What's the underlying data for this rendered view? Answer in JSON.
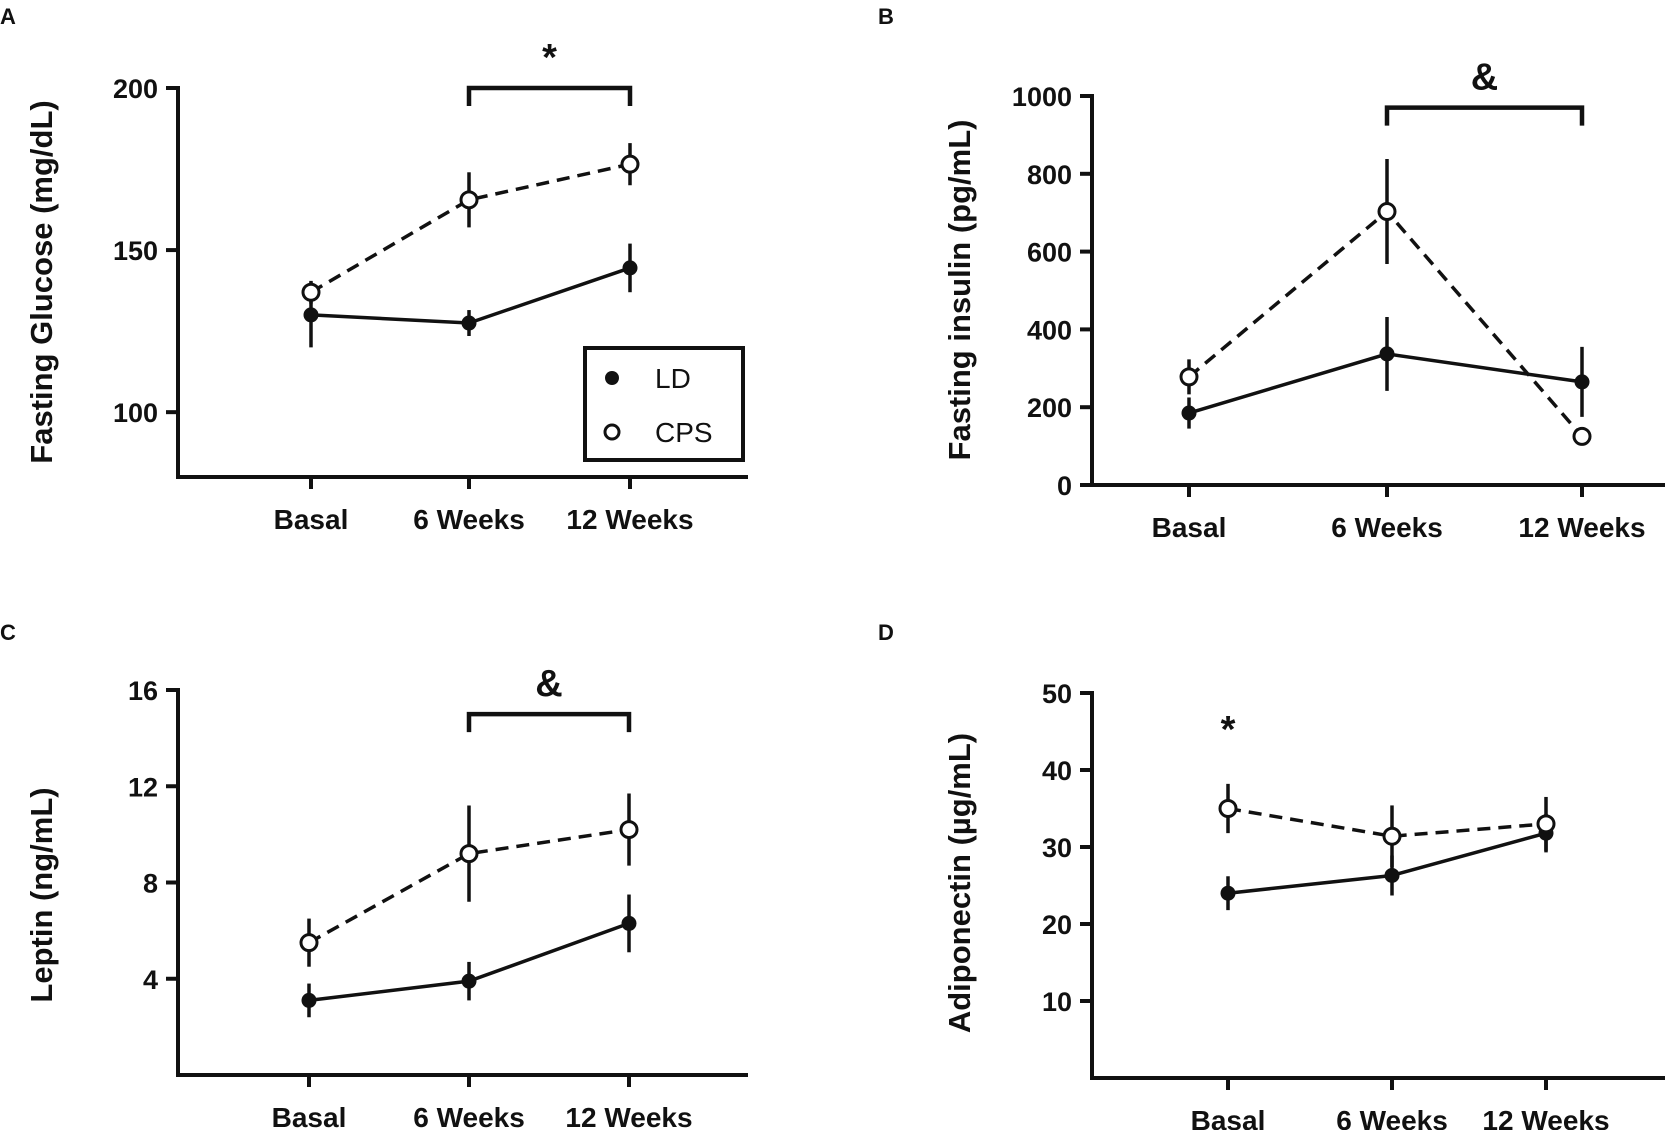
{
  "figure": {
    "panels": [
      "A",
      "B",
      "C",
      "D"
    ]
  },
  "colors": {
    "ink": "#111111",
    "open_fill": "#ffffff"
  },
  "chart_data": [
    {
      "panel": "A",
      "type": "line",
      "categories": [
        "Basal",
        "6 Weeks",
        "12 Weeks"
      ],
      "ylabel": "Fasting Glucose (mg/dL)",
      "xlabel": "",
      "ylim": [
        80,
        200
      ],
      "yticks": [
        100,
        150,
        200
      ],
      "series": [
        {
          "name": "LD",
          "marker": "filled",
          "dash": "solid",
          "values": [
            130,
            127.5,
            144.5
          ],
          "errors": [
            10,
            4,
            7.5
          ]
        },
        {
          "name": "CPS",
          "marker": "open",
          "dash": "dashed",
          "values": [
            137,
            165.5,
            176.5
          ],
          "errors": [
            3.5,
            8.5,
            6.5
          ]
        }
      ],
      "significance": [
        {
          "symbol": "*",
          "from": 1,
          "to": 2,
          "bracket": true,
          "level": 200
        }
      ],
      "legend": {
        "position": "bottom-right",
        "entries": [
          "LD",
          "CPS"
        ]
      }
    },
    {
      "panel": "B",
      "type": "line",
      "categories": [
        "Basal",
        "6 Weeks",
        "12 Weeks"
      ],
      "ylabel": "Fasting insulin (pg/mL)",
      "xlabel": "",
      "ylim": [
        0,
        1000
      ],
      "yticks": [
        0,
        200,
        400,
        600,
        800,
        1000
      ],
      "series": [
        {
          "name": "LD",
          "marker": "filled",
          "dash": "solid",
          "values": [
            185,
            337,
            265
          ],
          "errors": [
            40,
            95,
            90
          ]
        },
        {
          "name": "CPS",
          "marker": "open",
          "dash": "dashed",
          "values": [
            278,
            703,
            125
          ],
          "errors": [
            45,
            135,
            15
          ]
        }
      ],
      "significance": [
        {
          "symbol": "&",
          "from": 1,
          "to": 2,
          "bracket": true,
          "level": 970
        }
      ]
    },
    {
      "panel": "C",
      "type": "line",
      "categories": [
        "Basal",
        "6 Weeks",
        "12 Weeks"
      ],
      "ylabel": "Leptin (ng/mL)",
      "xlabel": "",
      "ylim": [
        0,
        16
      ],
      "yticks": [
        4,
        8,
        12,
        16
      ],
      "series": [
        {
          "name": "LD",
          "marker": "filled",
          "dash": "solid",
          "values": [
            3.1,
            3.9,
            6.3
          ],
          "errors": [
            0.7,
            0.8,
            1.2
          ]
        },
        {
          "name": "CPS",
          "marker": "open",
          "dash": "dashed",
          "values": [
            5.5,
            9.2,
            10.2
          ],
          "errors": [
            1.0,
            2.0,
            1.5
          ]
        }
      ],
      "significance": [
        {
          "symbol": "&",
          "from": 1,
          "to": 2,
          "bracket": true,
          "level": 15.0
        }
      ]
    },
    {
      "panel": "D",
      "type": "line",
      "categories": [
        "Basal",
        "6 Weeks",
        "12 Weeks"
      ],
      "ylabel": "Adiponectin (µg/mL)",
      "xlabel": "",
      "ylim": [
        0,
        50
      ],
      "yticks": [
        10,
        20,
        30,
        40,
        50
      ],
      "series": [
        {
          "name": "LD",
          "marker": "filled",
          "dash": "solid",
          "values": [
            24,
            26.3,
            31.8
          ],
          "errors": [
            2.2,
            2.6,
            2.5
          ]
        },
        {
          "name": "CPS",
          "marker": "open",
          "dash": "dashed",
          "values": [
            35,
            31.4,
            33
          ],
          "errors": [
            3.2,
            4,
            3.5
          ]
        }
      ],
      "significance": [
        {
          "symbol": "*",
          "at": 0,
          "bracket": false,
          "level": 47
        }
      ]
    }
  ]
}
